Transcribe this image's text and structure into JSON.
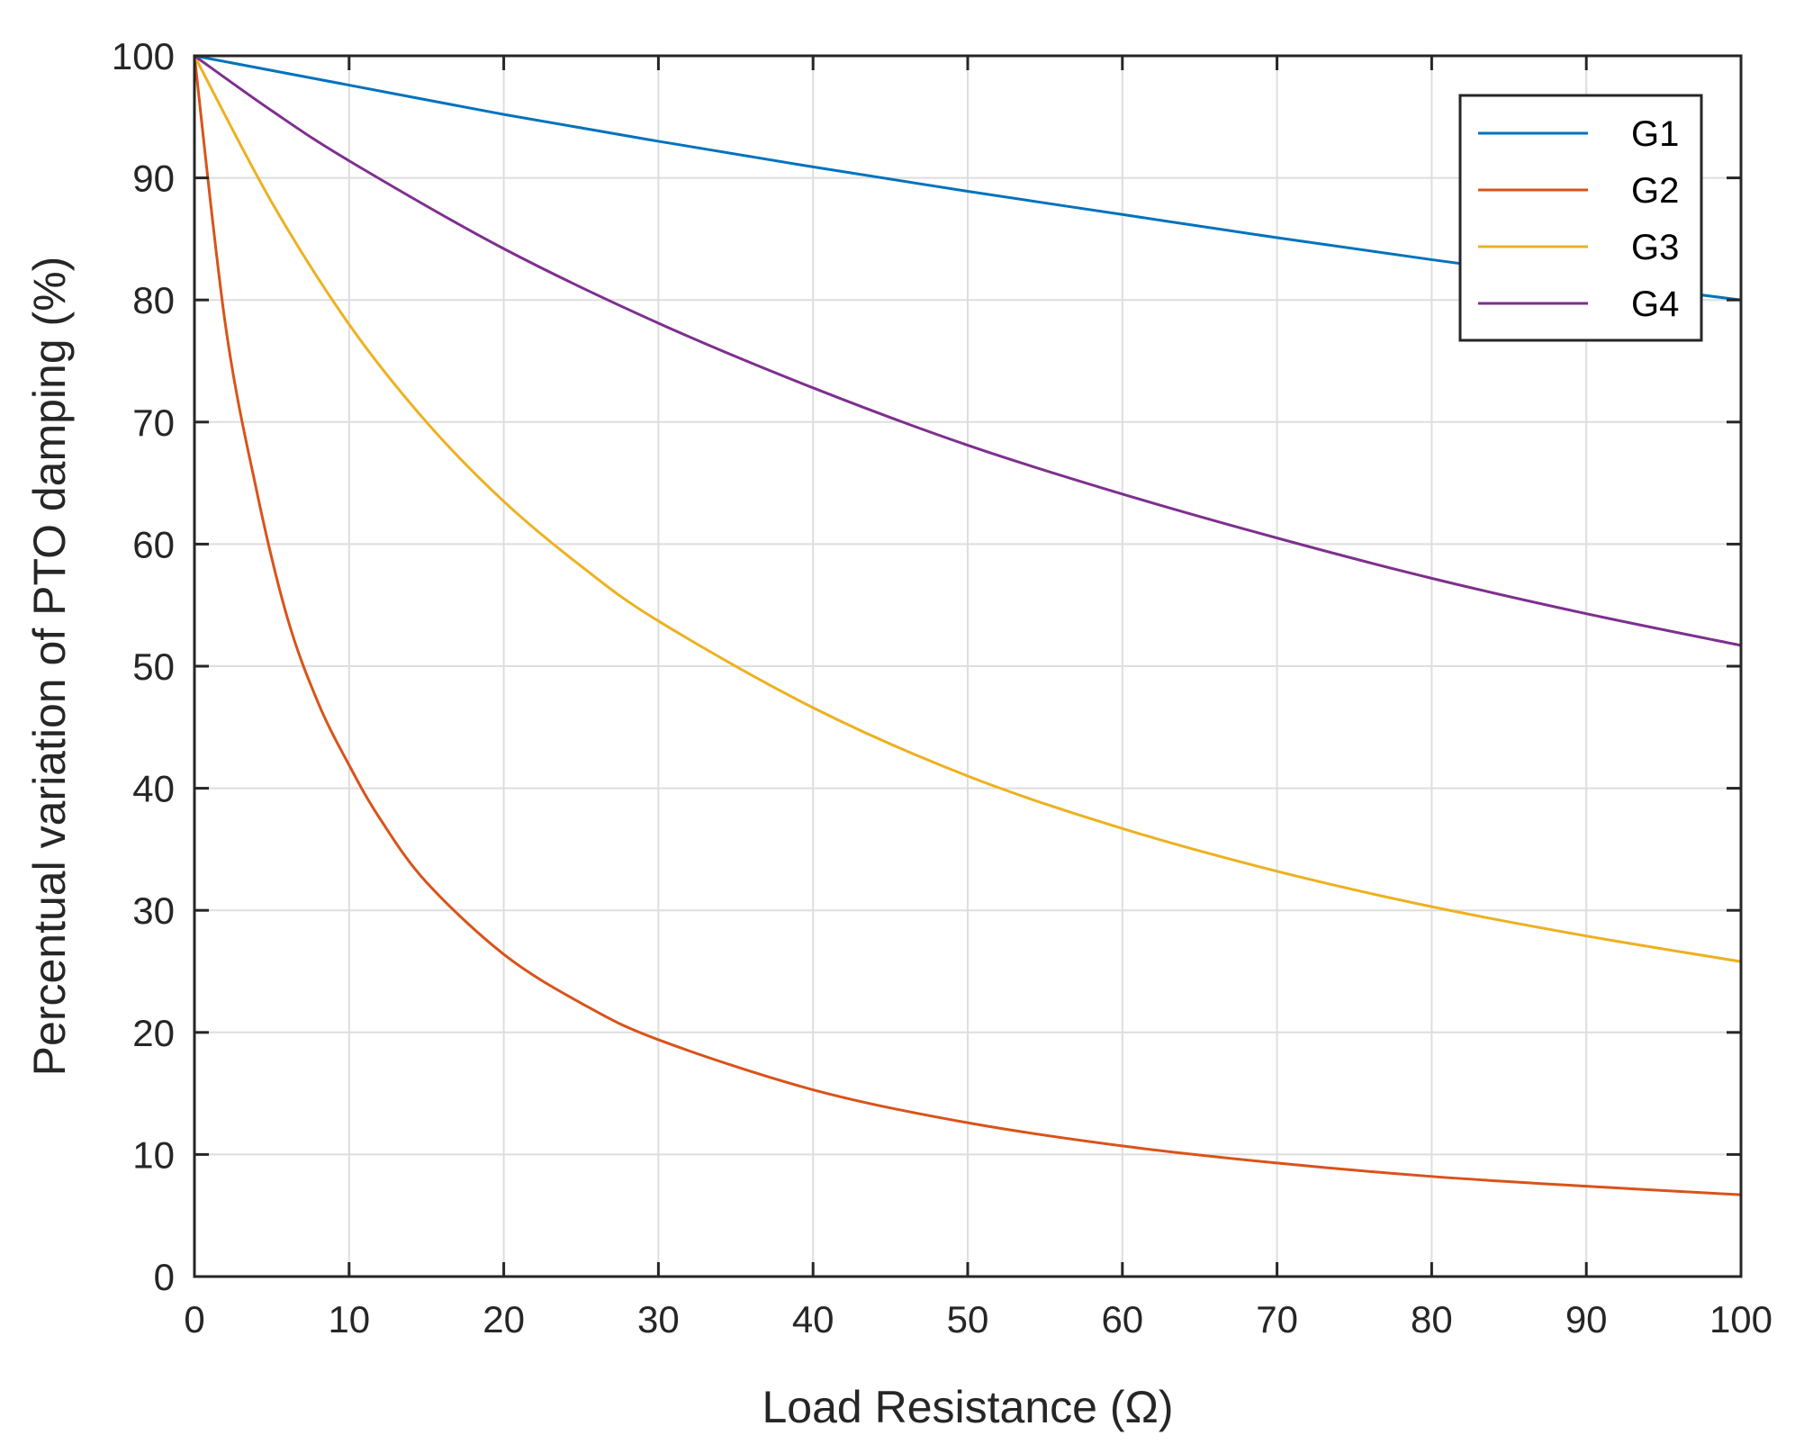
{
  "chart_data": {
    "type": "line",
    "title": "",
    "xlabel": "Load Resistance (Ω)",
    "ylabel": "Percentual variation of PTO damping (%)",
    "xlim": [
      0,
      100
    ],
    "ylim": [
      0,
      100
    ],
    "xticks": [
      0,
      10,
      20,
      30,
      40,
      50,
      60,
      70,
      80,
      90,
      100
    ],
    "yticks": [
      0,
      10,
      20,
      30,
      40,
      50,
      60,
      70,
      80,
      90,
      100
    ],
    "grid": true,
    "legend_position": "top-right",
    "series": [
      {
        "name": "G1",
        "color": "#0072BD",
        "x": [
          0,
          10,
          20,
          30,
          40,
          50,
          60,
          70,
          80,
          90,
          100
        ],
        "values": [
          100,
          97.6,
          95.2,
          93.0,
          90.9,
          88.9,
          87.0,
          85.1,
          83.3,
          81.6,
          80.0
        ]
      },
      {
        "name": "G2",
        "color": "#D95319",
        "x": [
          0,
          2,
          4,
          6,
          8,
          10,
          12,
          15,
          20,
          25,
          30,
          40,
          50,
          60,
          70,
          80,
          90,
          100
        ],
        "values": [
          100,
          78.0,
          64.5,
          54.0,
          47.0,
          41.9,
          37.5,
          32.3,
          26.4,
          22.4,
          19.4,
          15.3,
          12.6,
          10.7,
          9.3,
          8.2,
          7.4,
          6.7
        ]
      },
      {
        "name": "G3",
        "color": "#EDB120",
        "x": [
          0,
          5,
          10,
          15,
          20,
          25,
          30,
          40,
          50,
          60,
          70,
          80,
          90,
          100
        ],
        "values": [
          100,
          88.0,
          78.0,
          70.0,
          63.5,
          58.2,
          53.7,
          46.6,
          41.0,
          36.7,
          33.2,
          30.3,
          27.9,
          25.8
        ]
      },
      {
        "name": "G4",
        "color": "#7E2F8E",
        "x": [
          0,
          5,
          10,
          20,
          30,
          40,
          50,
          60,
          70,
          80,
          90,
          100
        ],
        "values": [
          100,
          95.5,
          91.4,
          84.2,
          78.1,
          72.8,
          68.1,
          64.1,
          60.5,
          57.2,
          54.3,
          51.7
        ]
      }
    ]
  }
}
